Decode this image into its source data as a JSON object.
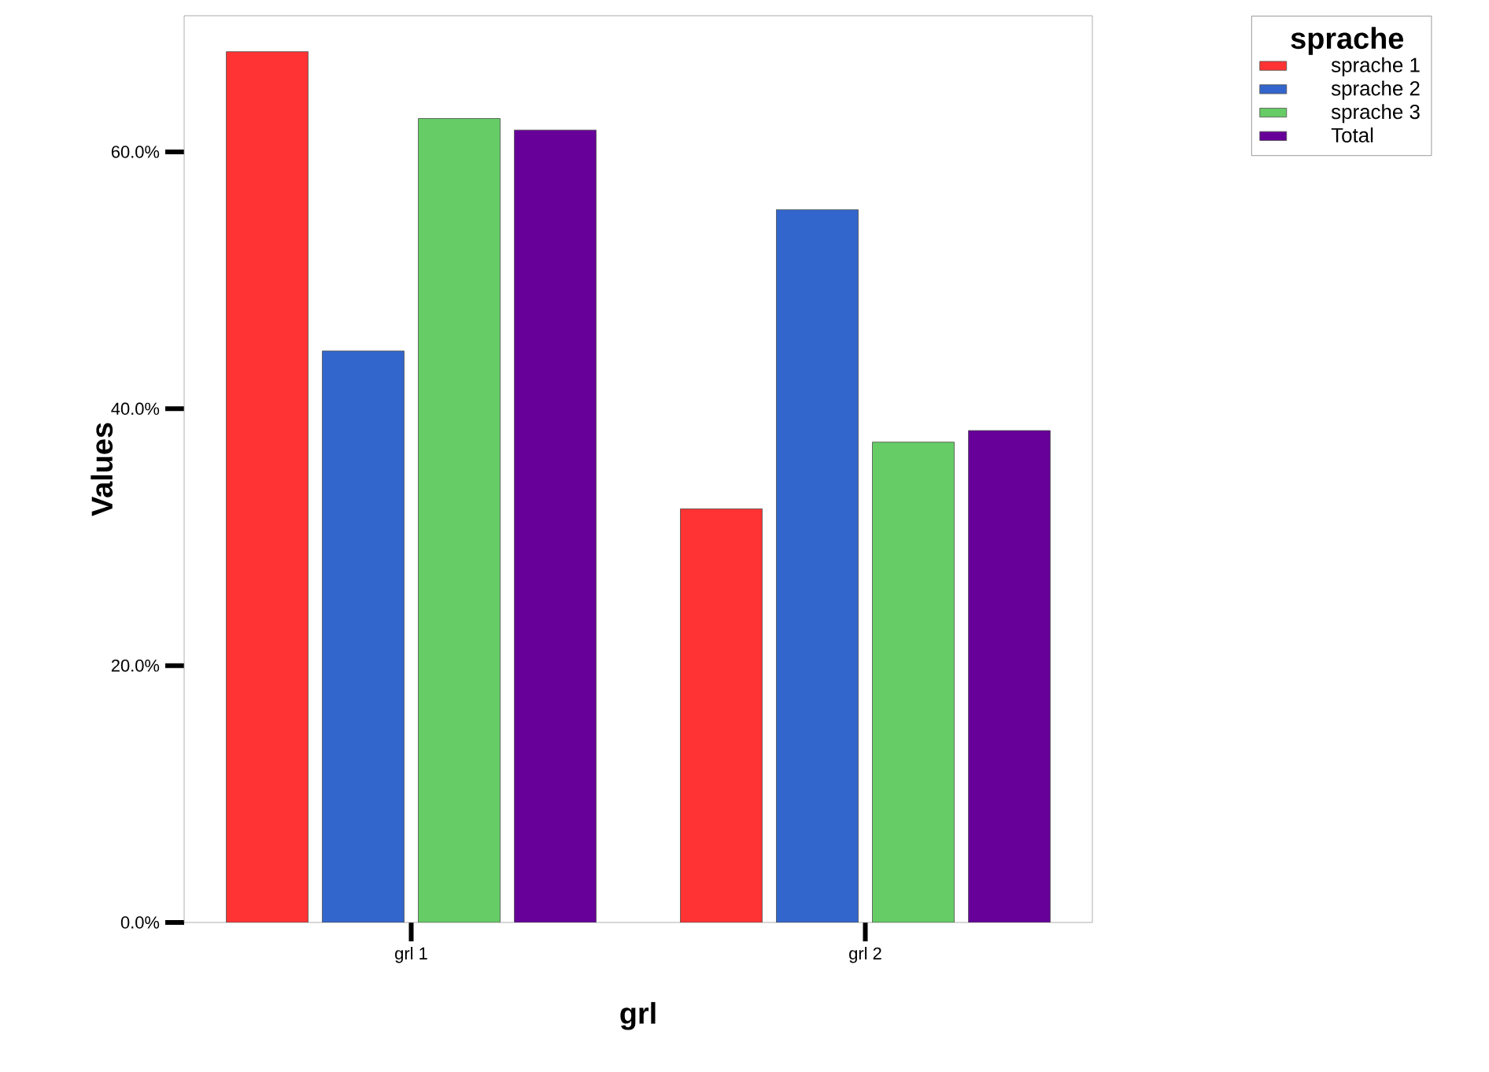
{
  "chart_data": {
    "type": "bar",
    "xlabel": "grl",
    "ylabel": "Values",
    "legend_title": "sprache",
    "categories": [
      "grl 1",
      "grl 2"
    ],
    "series": [
      {
        "name": "sprache 1",
        "color": "#ff3333",
        "values": [
          67.8,
          32.2
        ]
      },
      {
        "name": "sprache 2",
        "color": "#3366cc",
        "values": [
          44.5,
          55.5
        ]
      },
      {
        "name": "sprache 3",
        "color": "#66cc66",
        "values": [
          62.6,
          37.4
        ]
      },
      {
        "name": "Total",
        "color": "#660099",
        "values": [
          61.7,
          38.3
        ]
      }
    ],
    "ylim": [
      0,
      70.6
    ],
    "yticks": [
      {
        "value": 0,
        "label": "0.0%"
      },
      {
        "value": 20,
        "label": "20.0%"
      },
      {
        "value": 40,
        "label": "40.0%"
      },
      {
        "value": 60,
        "label": "60.0%"
      }
    ],
    "grid": false,
    "legend": "top right"
  }
}
